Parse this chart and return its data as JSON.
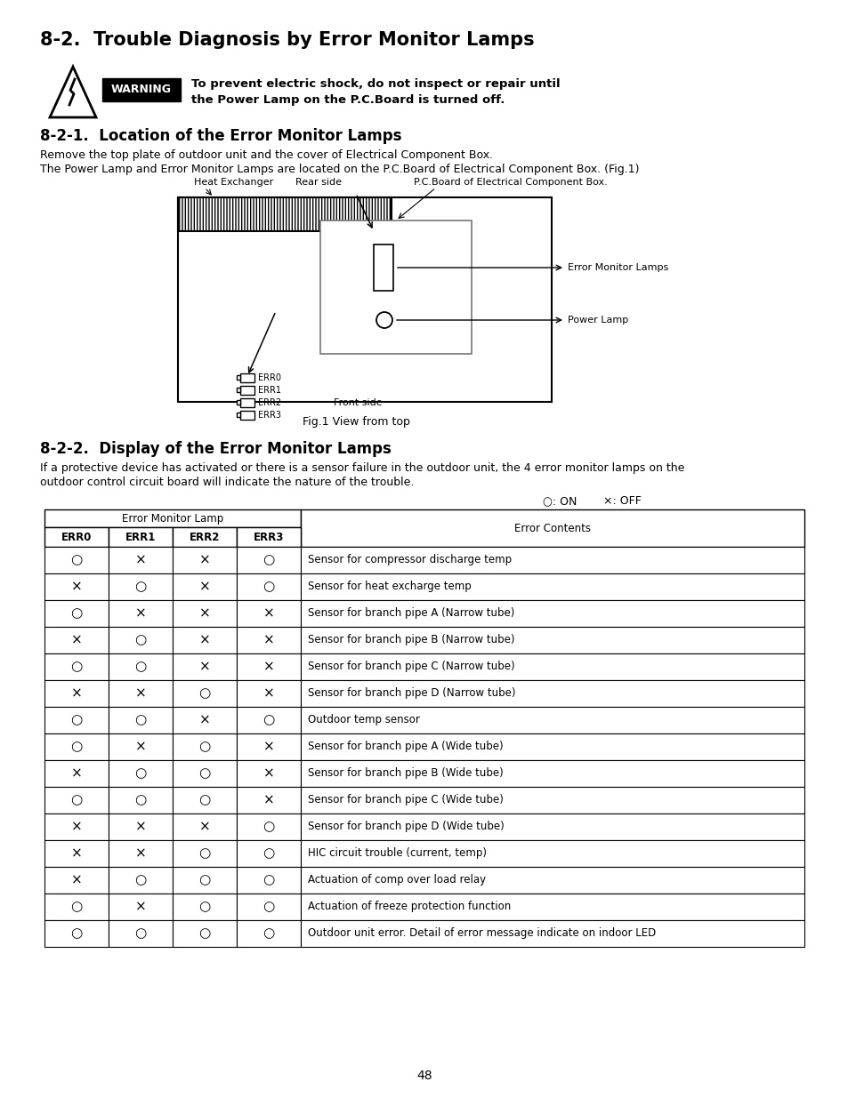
{
  "title": "8-2.  Trouble Diagnosis by Error Monitor Lamps",
  "section1_title": "8-2-1.  Location of the Error Monitor Lamps",
  "section1_text1": "Remove the top plate of outdoor unit and the cover of Electrical Component Box.",
  "section1_text2": "The Power Lamp and Error Monitor Lamps are located on the P.C.Board of Electrical Component Box. (Fig.1)",
  "section2_title": "8-2-2.  Display of the Error Monitor Lamps",
  "section2_text1": "If a protective device has activated or there is a sensor failure in the outdoor unit, the 4 error monitor lamps on the",
  "section2_text2": "outdoor control circuit board will indicate the nature of the trouble.",
  "warning_text1": "To prevent electric shock, do not inspect or repair until",
  "warning_text2": "the Power Lamp on the P.C.Board is turned off.",
  "warning_label": "WARNING",
  "heat_exchanger": "Heat Exchanger",
  "rear_side": "Rear side",
  "pcboard": "P.C.Board of Electrical Component Box.",
  "error_monitor_lamps": "Error Monitor Lamps",
  "power_lamp": "Power Lamp",
  "front_side": "Front side",
  "fig1": "Fig.1 View from top",
  "err_labels": [
    "ERR0",
    "ERR1",
    "ERR2",
    "ERR3"
  ],
  "legend_on": "○: ON",
  "legend_off": "×: OFF",
  "table_subheader": "Error Monitor Lamp",
  "table_contents_header": "Error Contents",
  "table_col_headers": [
    "ERR0",
    "ERR1",
    "ERR2",
    "ERR3"
  ],
  "table_data": [
    [
      "O",
      "X",
      "X",
      "O",
      "Sensor for compressor discharge temp"
    ],
    [
      "X",
      "O",
      "X",
      "O",
      "Sensor for heat excharge temp"
    ],
    [
      "O",
      "X",
      "X",
      "X",
      "Sensor for branch pipe A (Narrow tube)"
    ],
    [
      "X",
      "O",
      "X",
      "X",
      "Sensor for branch pipe B (Narrow tube)"
    ],
    [
      "O",
      "O",
      "X",
      "X",
      "Sensor for branch pipe C (Narrow tube)"
    ],
    [
      "X",
      "X",
      "O",
      "X",
      "Sensor for branch pipe D (Narrow tube)"
    ],
    [
      "O",
      "O",
      "X",
      "O",
      "Outdoor temp sensor"
    ],
    [
      "O",
      "X",
      "O",
      "X",
      "Sensor for branch pipe A (Wide tube)"
    ],
    [
      "X",
      "O",
      "O",
      "X",
      "Sensor for branch pipe B (Wide tube)"
    ],
    [
      "O",
      "O",
      "O",
      "X",
      "Sensor for branch pipe C (Wide tube)"
    ],
    [
      "X",
      "X",
      "X",
      "O",
      "Sensor for branch pipe D (Wide tube)"
    ],
    [
      "X",
      "X",
      "O",
      "O",
      "HIC circuit trouble (current, temp)"
    ],
    [
      "X",
      "O",
      "O",
      "O",
      "Actuation of comp over load relay"
    ],
    [
      "O",
      "X",
      "O",
      "O",
      "Actuation of freeze protection function"
    ],
    [
      "O",
      "O",
      "O",
      "O",
      "Outdoor unit error. Detail of error message indicate on indoor LED"
    ]
  ],
  "page_number": "48"
}
